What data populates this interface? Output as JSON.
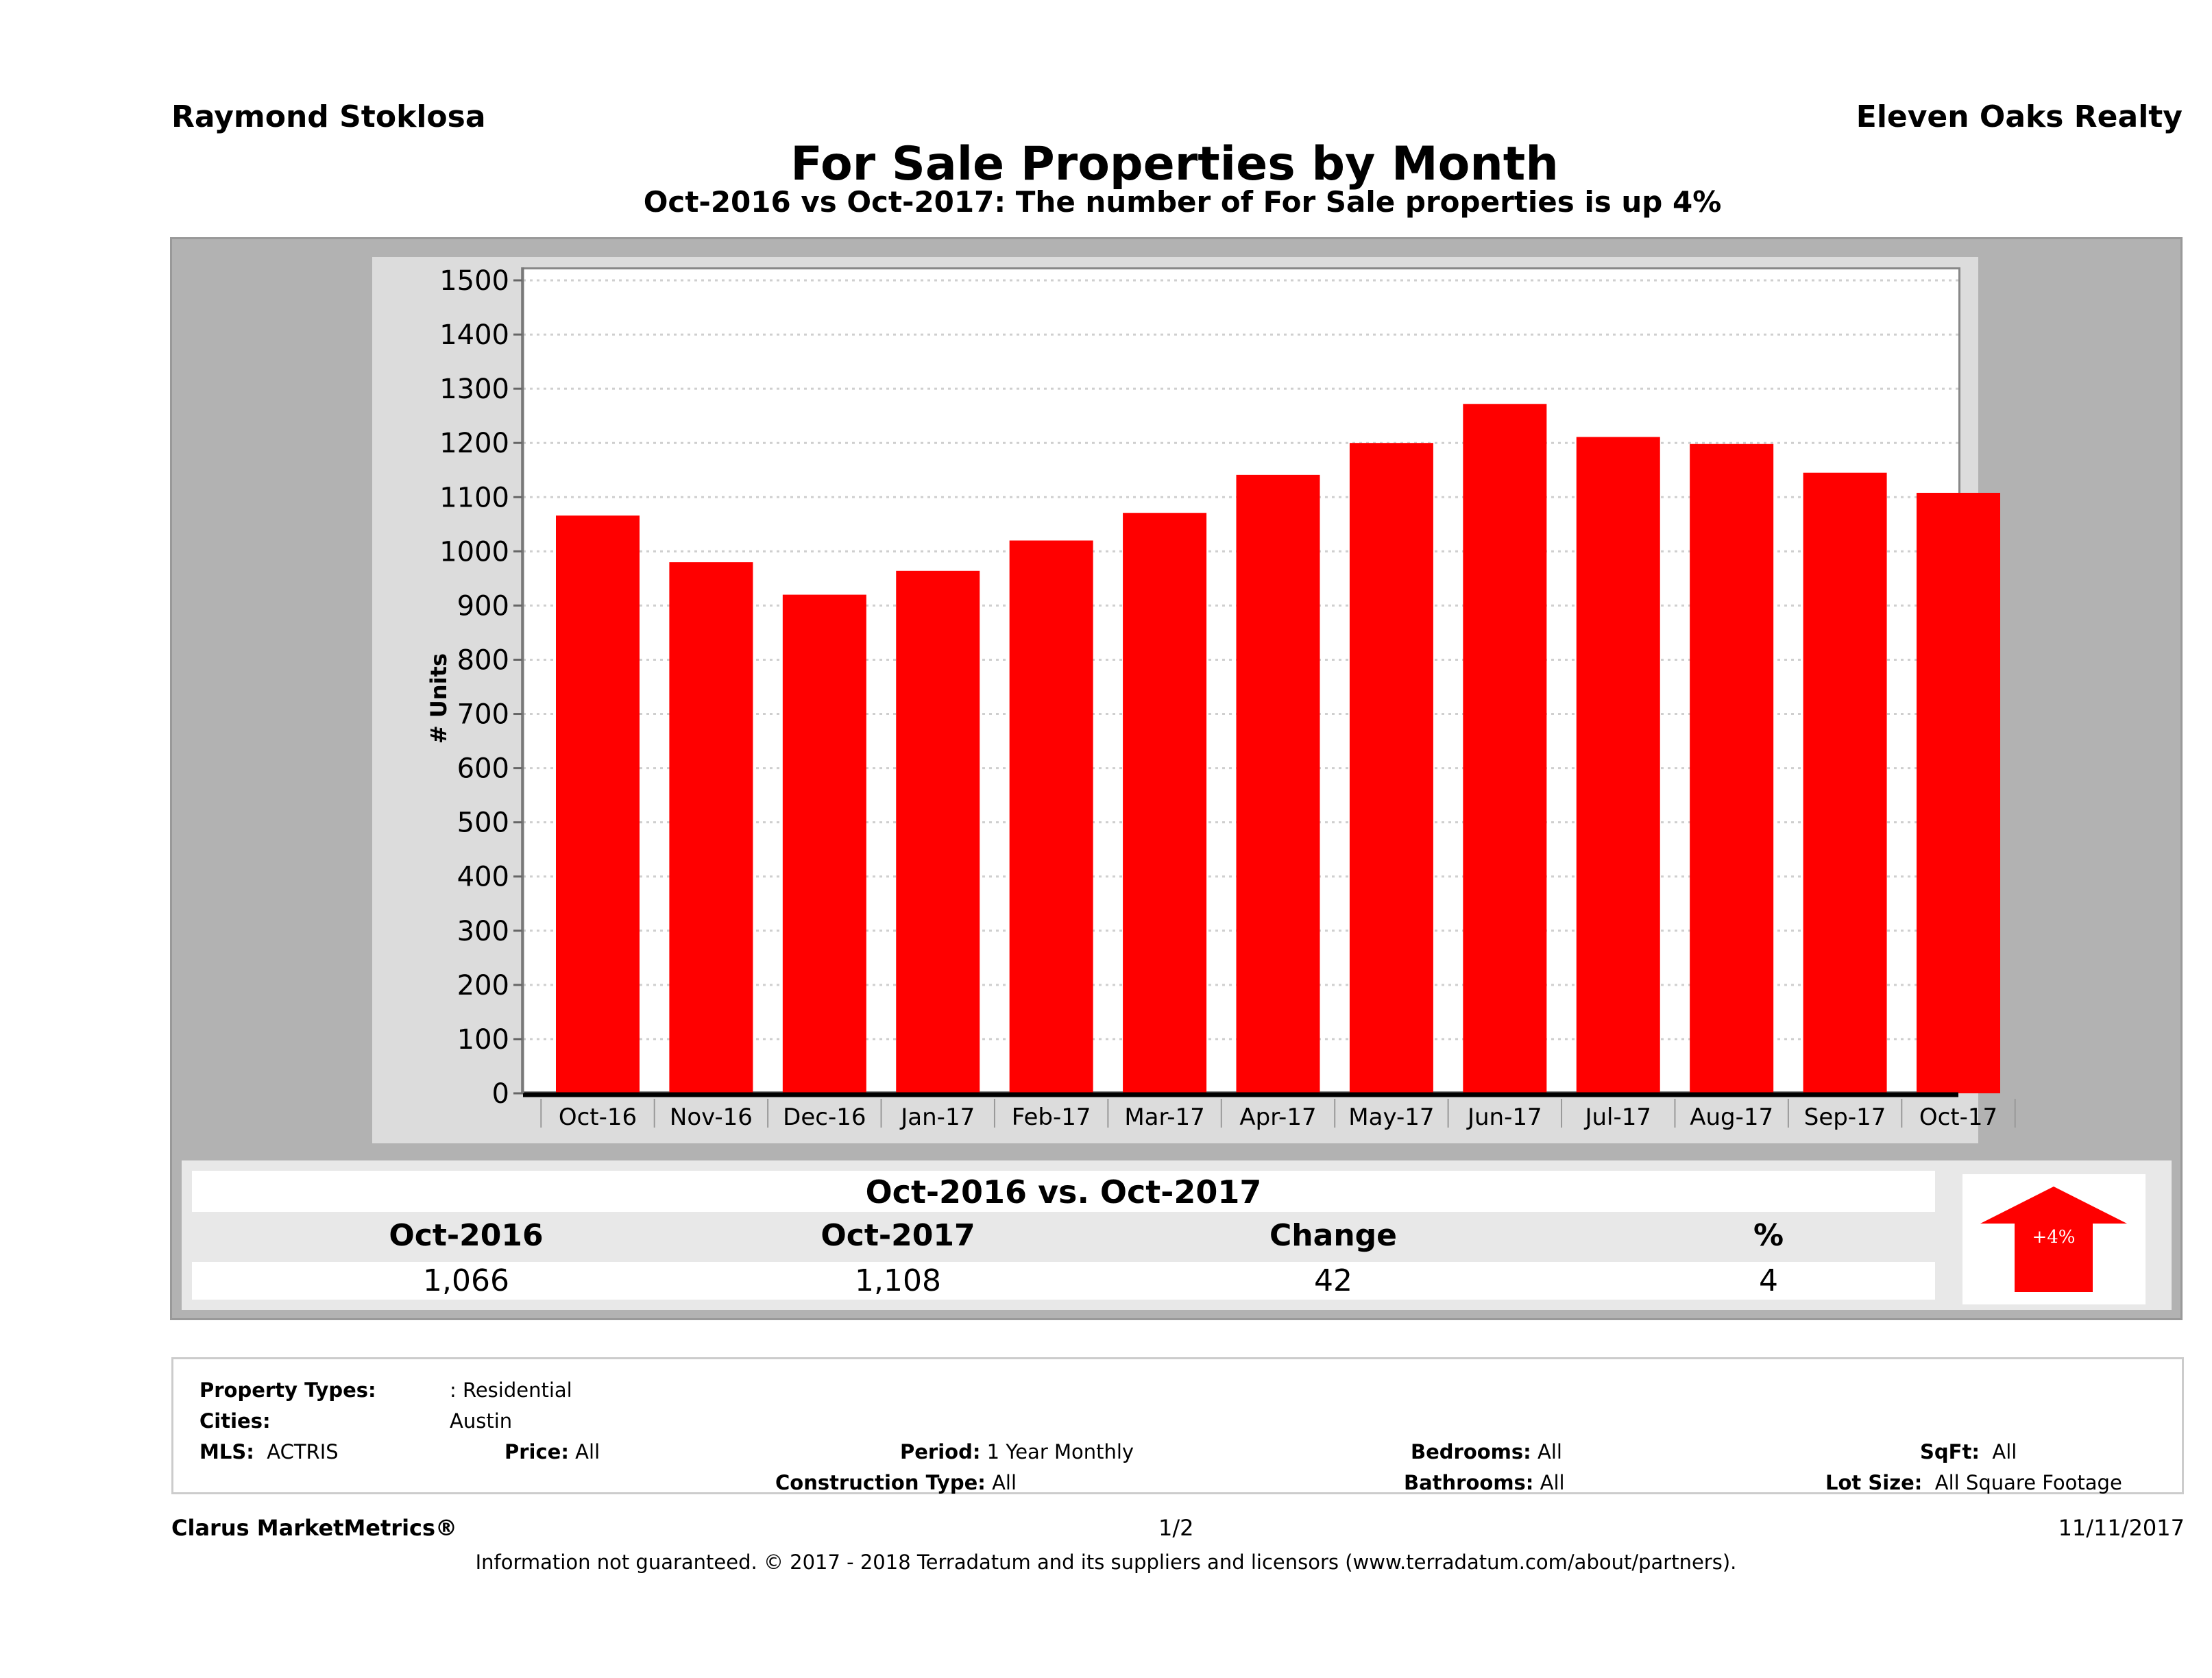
{
  "header": {
    "agent_name": "Raymond Stoklosa",
    "brokerage": "Eleven Oaks Realty",
    "title": "For Sale Properties by Month",
    "subtitle": "Oct-2016 vs Oct-2017: The number of For Sale  properties is up 4%"
  },
  "chart_data": {
    "type": "bar",
    "title": "For Sale Properties by Month",
    "xlabel": "",
    "ylabel": "# Units",
    "ylim": [
      0,
      1500
    ],
    "yticks": [
      0,
      100,
      200,
      300,
      400,
      500,
      600,
      700,
      800,
      900,
      1000,
      1100,
      1200,
      1300,
      1400,
      1500
    ],
    "grid": true,
    "bar_color": "#ff0000",
    "categories": [
      "Oct-16",
      "Nov-16",
      "Dec-16",
      "Jan-17",
      "Feb-17",
      "Mar-17",
      "Apr-17",
      "May-17",
      "Jun-17",
      "Jul-17",
      "Aug-17",
      "Sep-17",
      "Oct-17"
    ],
    "values": [
      1066,
      980,
      920,
      964,
      1020,
      1071,
      1141,
      1200,
      1272,
      1211,
      1198,
      1145,
      1108
    ]
  },
  "summary": {
    "title": "Oct-2016 vs. Oct-2017",
    "headers": [
      "Oct-2016",
      "Oct-2017",
      "Change",
      "%"
    ],
    "values": [
      "1,066",
      "1,108",
      "42",
      "4"
    ],
    "badge": {
      "label": "+4%",
      "direction": "up",
      "color": "#ff0000"
    }
  },
  "filters": {
    "property_types": {
      "label": "Property Types:",
      "value": ": Residential"
    },
    "cities": {
      "label": "Cities:",
      "value": "Austin"
    },
    "mls": {
      "label": "MLS:",
      "value": "ACTRIS"
    },
    "price": {
      "label": "Price:",
      "value": "All"
    },
    "period": {
      "label": "Period:",
      "value": "1 Year Monthly"
    },
    "construction_type": {
      "label": "Construction Type:",
      "value": "All"
    },
    "bedrooms": {
      "label": "Bedrooms:",
      "value": "All"
    },
    "bathrooms": {
      "label": "Bathrooms:",
      "value": "All"
    },
    "sqft": {
      "label": "SqFt:",
      "value": "All"
    },
    "lot_size": {
      "label": "Lot Size:",
      "value": "All Square Footage"
    }
  },
  "footer": {
    "product": "Clarus MarketMetrics®",
    "page": "1/2",
    "date": "11/11/2017",
    "disclaimer": "Information not guaranteed. © 2017 - 2018 Terradatum and its suppliers and licensors (www.terradatum.com/about/partners)."
  }
}
